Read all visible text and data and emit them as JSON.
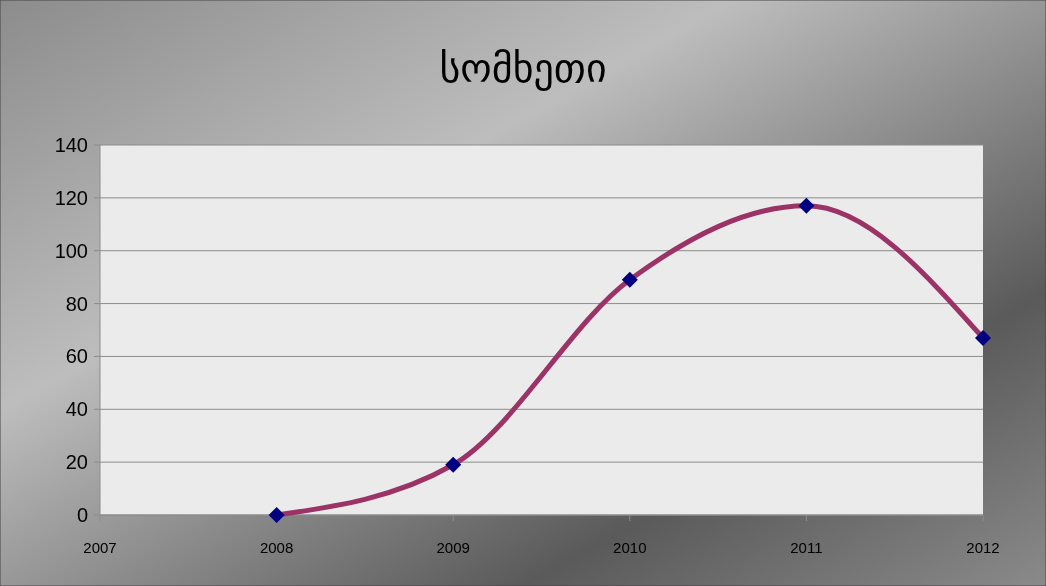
{
  "chart_data": {
    "type": "line",
    "title": "სომხეთი",
    "x": [
      2008,
      2009,
      2010,
      2011,
      2012
    ],
    "series": [
      {
        "color": "#9b3366",
        "values": [
          0,
          19,
          89,
          117,
          67
        ]
      }
    ],
    "xlim": [
      2007,
      2012
    ],
    "xticks": [
      2007,
      2008,
      2009,
      2010,
      2011,
      2012
    ],
    "ylim": [
      0,
      140
    ],
    "yticks": [
      0,
      20,
      40,
      60,
      80,
      100,
      120,
      140
    ],
    "grid": "y",
    "marker": "diamond",
    "line_style": "solid"
  }
}
